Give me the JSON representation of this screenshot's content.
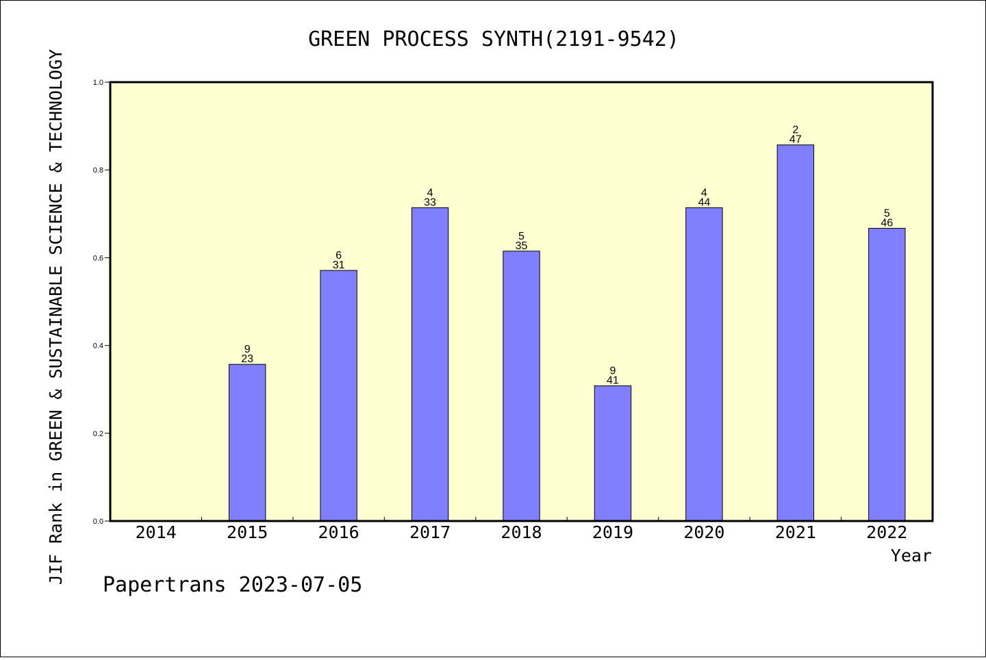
{
  "chart_data": {
    "type": "bar",
    "title": "GREEN PROCESS SYNTH(2191-9542)",
    "xlabel": "Year",
    "ylabel": "JIF Rank in GREEN & SUSTAINABLE SCIENCE & TECHNOLOGY",
    "categories": [
      "2014",
      "2015",
      "2016",
      "2017",
      "2018",
      "2019",
      "2020",
      "2021",
      "2022"
    ],
    "values": [
      null,
      0.357,
      0.571,
      0.714,
      0.615,
      0.308,
      0.714,
      0.857,
      0.667
    ],
    "bar_labels": [
      null,
      {
        "rank": "9",
        "total": "23"
      },
      {
        "rank": "6",
        "total": "31"
      },
      {
        "rank": "4",
        "total": "33"
      },
      {
        "rank": "5",
        "total": "35"
      },
      {
        "rank": "9",
        "total": "41"
      },
      {
        "rank": "4",
        "total": "44"
      },
      {
        "rank": "2",
        "total": "47"
      },
      {
        "rank": "5",
        "total": "46"
      }
    ],
    "ylim": [
      0,
      1.0
    ],
    "yticks": [
      "0.0",
      "0.2",
      "0.4",
      "0.6",
      "0.8",
      "1.0"
    ],
    "grid": false,
    "bar_color": "#8080ff",
    "plot_background": "#ffffd2"
  },
  "footer": "Papertrans 2023-07-05"
}
